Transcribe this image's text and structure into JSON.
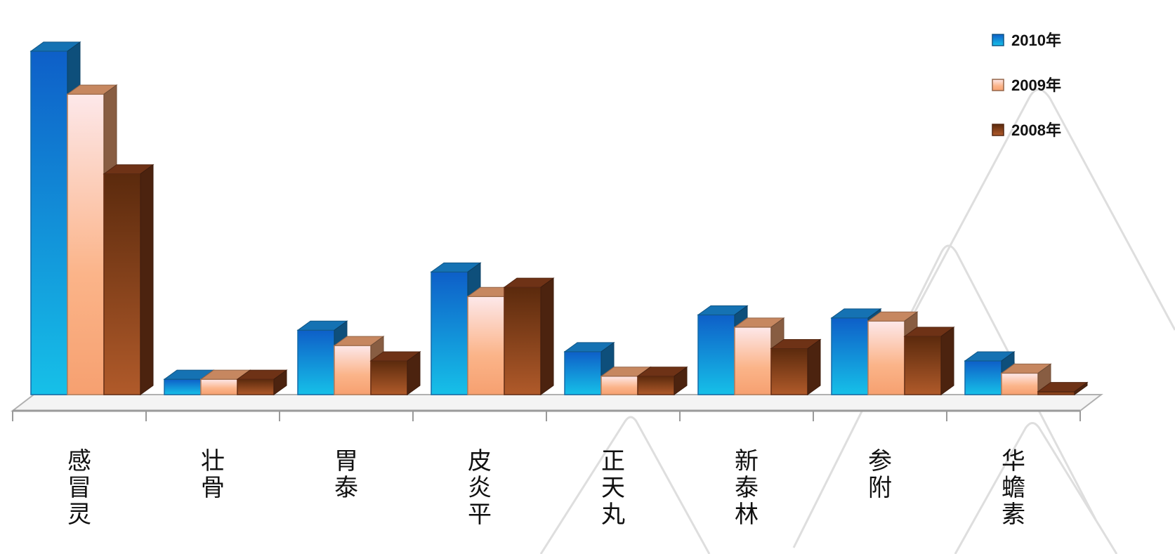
{
  "chart_data": {
    "type": "bar",
    "title": "",
    "xlabel": "",
    "ylabel": "",
    "categories": [
      "感冒灵",
      "壮骨",
      "胃泰",
      "皮炎平",
      "正天丸",
      "新泰林",
      "参附",
      "华蟾素"
    ],
    "series": [
      {
        "name": "2010年",
        "color": "#1a8fe0",
        "values": [
          5.6,
          0.25,
          1.05,
          2.0,
          0.7,
          1.3,
          1.25,
          0.55
        ]
      },
      {
        "name": "2009年",
        "color": "#f7a978",
        "values": [
          4.9,
          0.25,
          0.8,
          1.6,
          0.3,
          1.1,
          1.2,
          0.35
        ]
      },
      {
        "name": "2008年",
        "color": "#8a3f1c",
        "values": [
          3.6,
          0.25,
          0.55,
          1.75,
          0.3,
          0.75,
          0.95,
          0.05
        ]
      }
    ],
    "ylim": [
      0,
      6
    ],
    "grid": false,
    "legend_position": "top-right"
  }
}
